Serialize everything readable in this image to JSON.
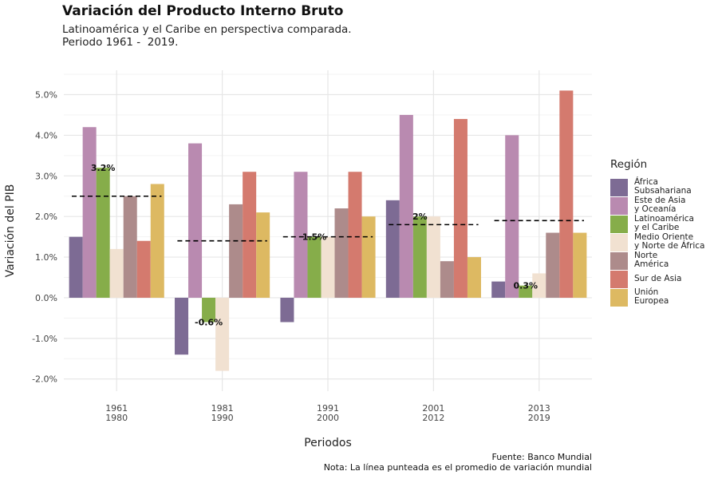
{
  "title": "Variación del Producto Interno Bruto",
  "subtitle_lines": [
    "Latinoamérica y el Caribe en perspectiva comparada.",
    "Periodo 1961 -  2019."
  ],
  "caption_lines": [
    "Fuente: Banco Mundial",
    "Nota: La línea punteada es el promedio de variación mundial"
  ],
  "chart_data": {
    "type": "bar",
    "xlabel": "Periodos",
    "ylabel": "Variación del PIB",
    "ylim": [
      -2.3,
      5.6
    ],
    "yticks": [
      -2,
      -1,
      0,
      1,
      2,
      3,
      4,
      5
    ],
    "ytick_labels": [
      "-2.0%",
      "-1.0%",
      "0.0%",
      "1.0%",
      "2.0%",
      "3.0%",
      "4.0%",
      "5.0%"
    ],
    "grid": true,
    "categories": [
      [
        "1961",
        "1980"
      ],
      [
        "1981",
        "1990"
      ],
      [
        "1991",
        "2000"
      ],
      [
        "2001",
        "2012"
      ],
      [
        "2013",
        "2019"
      ]
    ],
    "legend_title": "Región",
    "legend_position": "right",
    "series": [
      {
        "name": [
          "África",
          "Subsahariana"
        ],
        "color": "#7d6b94",
        "values": [
          1.5,
          -1.4,
          -0.6,
          2.4,
          0.4
        ]
      },
      {
        "name": [
          "Este de Asia",
          "y Oceanía"
        ],
        "color": "#b98ab0",
        "values": [
          4.2,
          3.8,
          3.1,
          4.5,
          4.0
        ]
      },
      {
        "name": [
          "Latinoamérica",
          "y el Caribe"
        ],
        "color": "#86ad4a",
        "values": [
          3.2,
          -0.6,
          1.5,
          2.0,
          0.3
        ]
      },
      {
        "name": [
          "Medio Oriente",
          "y Norte de África"
        ],
        "color": "#f1e1d1",
        "values": [
          1.2,
          -1.8,
          1.5,
          2.0,
          0.6
        ]
      },
      {
        "name": [
          "Norte",
          "América"
        ],
        "color": "#ad8b8b",
        "values": [
          2.5,
          2.3,
          2.2,
          0.9,
          1.6
        ]
      },
      {
        "name": [
          "Sur de Asia"
        ],
        "color": "#d47a6e",
        "values": [
          1.4,
          3.1,
          3.1,
          4.4,
          5.1
        ]
      },
      {
        "name": [
          "Unión",
          "Europea"
        ],
        "color": "#ddb962",
        "values": [
          2.8,
          2.1,
          2.0,
          1.0,
          1.6
        ]
      }
    ],
    "world_average": [
      2.5,
      1.4,
      1.5,
      1.8,
      1.9
    ],
    "annotations": [
      "3.2%",
      "-0.6%",
      "1.5%",
      "2%",
      "0.3%"
    ]
  }
}
